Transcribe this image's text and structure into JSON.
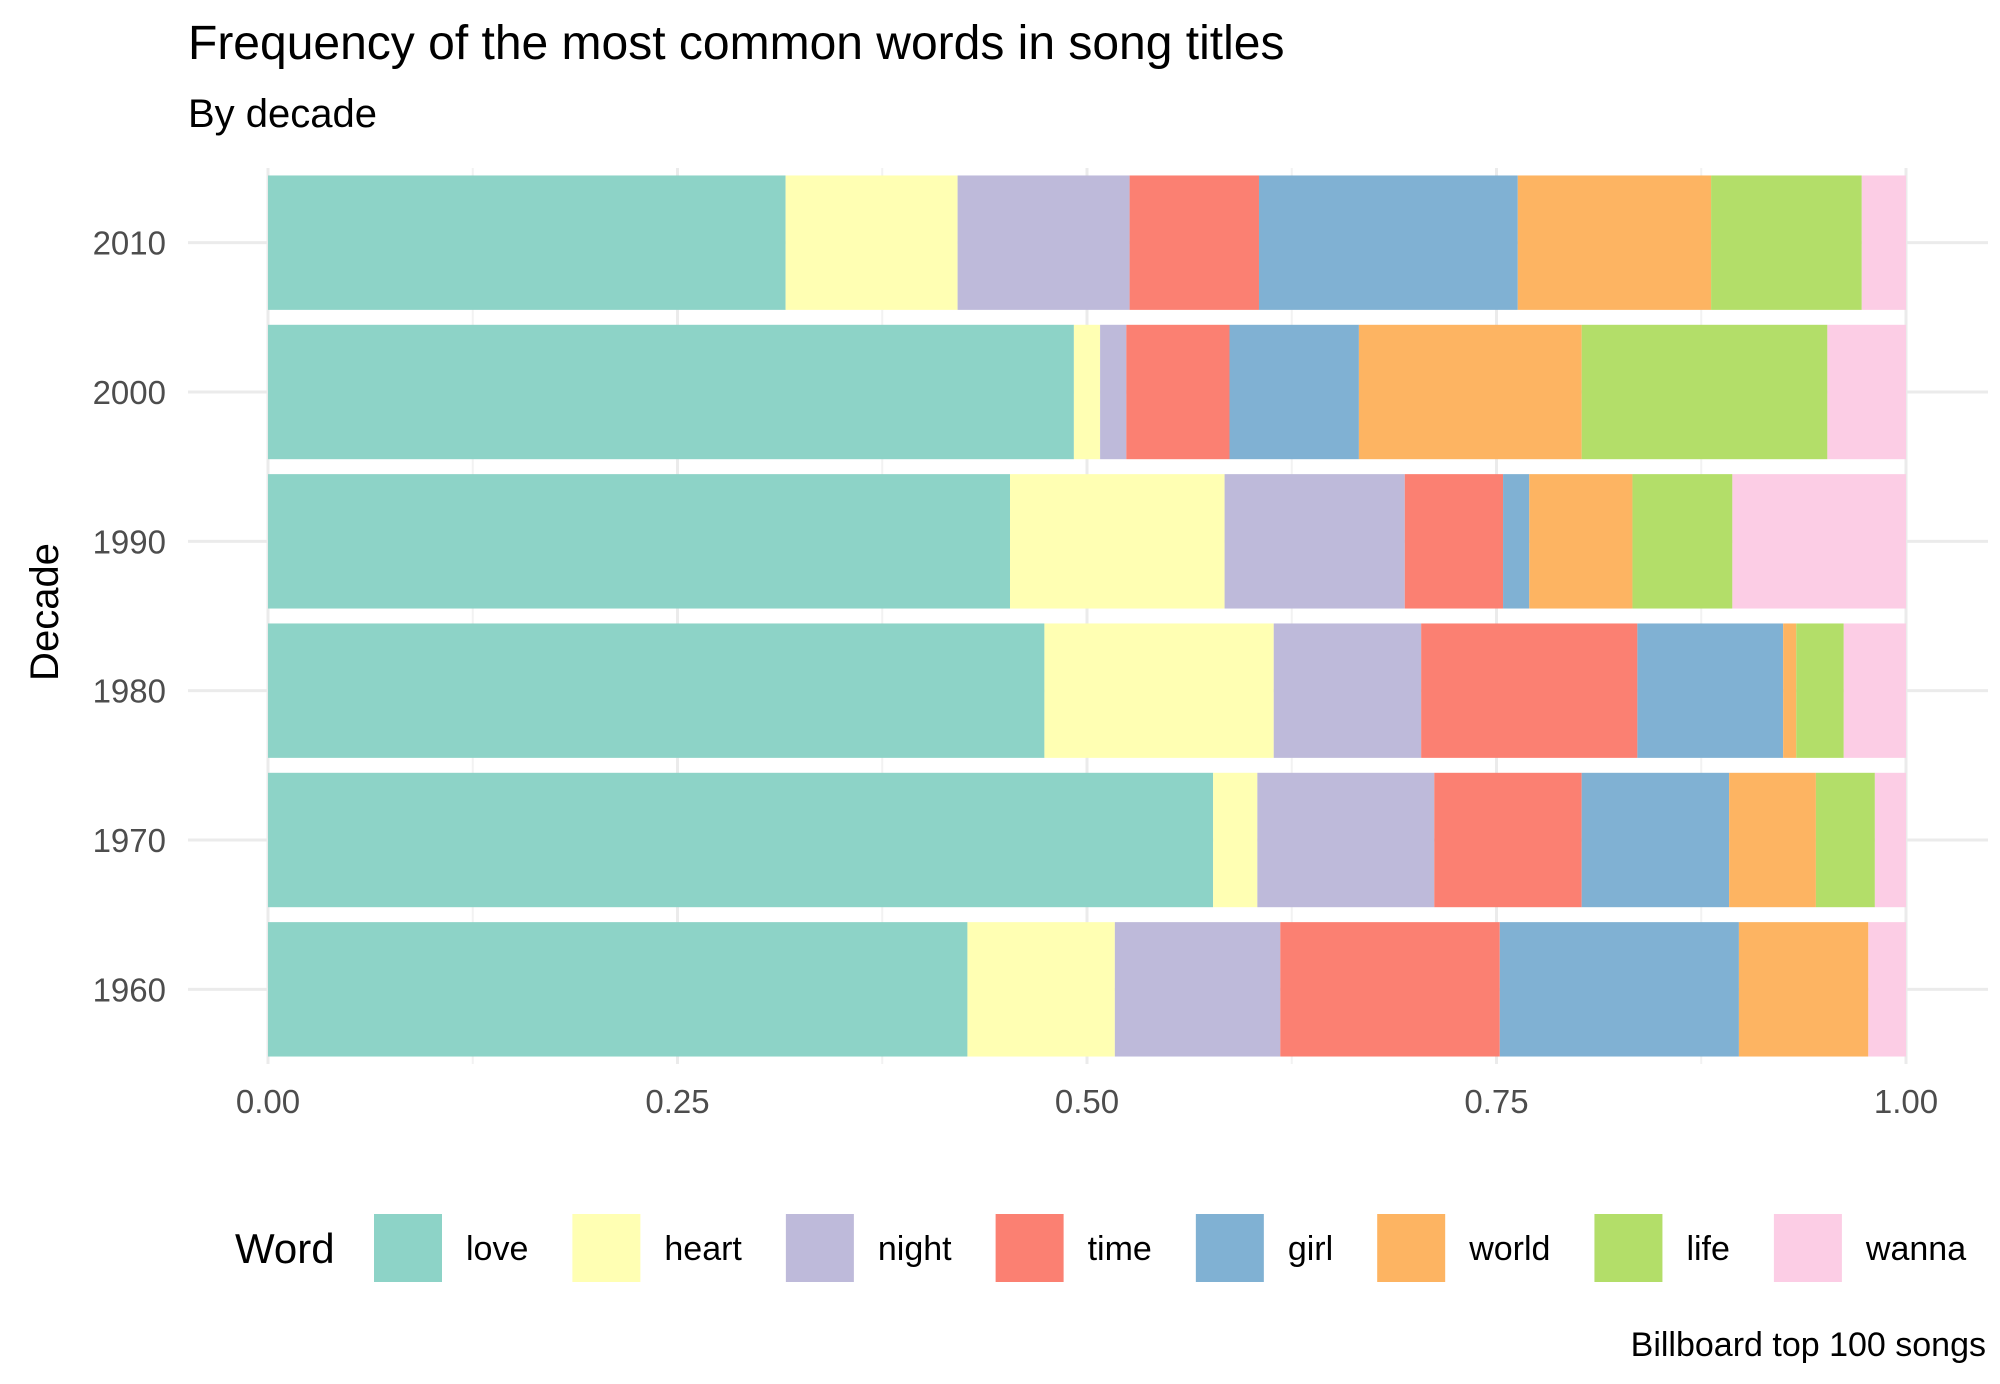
{
  "title": "Frequency of the most common words in song titles",
  "subtitle": "By decade",
  "caption": "Billboard top 100 songs",
  "chart_data": {
    "type": "bar",
    "orientation": "horizontal",
    "stacked": true,
    "xlabel": "",
    "ylabel": "Decade",
    "xlim": [
      0,
      1
    ],
    "x_ticks": [
      "0.00",
      "0.25",
      "0.50",
      "0.75",
      "1.00"
    ],
    "grid": true,
    "legend_title": "Word",
    "legend_position": "bottom",
    "categories": [
      "1960",
      "1970",
      "1980",
      "1990",
      "2000",
      "2010"
    ],
    "series": [
      {
        "name": "love",
        "color": "#8DD3C7",
        "values": [
          0.427,
          0.577,
          0.474,
          0.453,
          0.492,
          0.316
        ]
      },
      {
        "name": "heart",
        "color": "#FFFFB3",
        "values": [
          0.09,
          0.027,
          0.14,
          0.131,
          0.016,
          0.105
        ]
      },
      {
        "name": "night",
        "color": "#BEBADA",
        "values": [
          0.101,
          0.108,
          0.09,
          0.11,
          0.016,
          0.105
        ]
      },
      {
        "name": "time",
        "color": "#FB8072",
        "values": [
          0.134,
          0.09,
          0.132,
          0.06,
          0.063,
          0.079
        ]
      },
      {
        "name": "girl",
        "color": "#80B1D3",
        "values": [
          0.146,
          0.09,
          0.089,
          0.016,
          0.079,
          0.158
        ]
      },
      {
        "name": "world",
        "color": "#FDB462",
        "values": [
          0.079,
          0.053,
          0.008,
          0.063,
          0.136,
          0.118
        ]
      },
      {
        "name": "life",
        "color": "#B3DE69",
        "values": [
          0.0,
          0.036,
          0.029,
          0.061,
          0.15,
          0.092
        ]
      },
      {
        "name": "wanna",
        "color": "#FCCDE5",
        "values": [
          0.023,
          0.019,
          0.038,
          0.106,
          0.048,
          0.027
        ]
      }
    ]
  }
}
